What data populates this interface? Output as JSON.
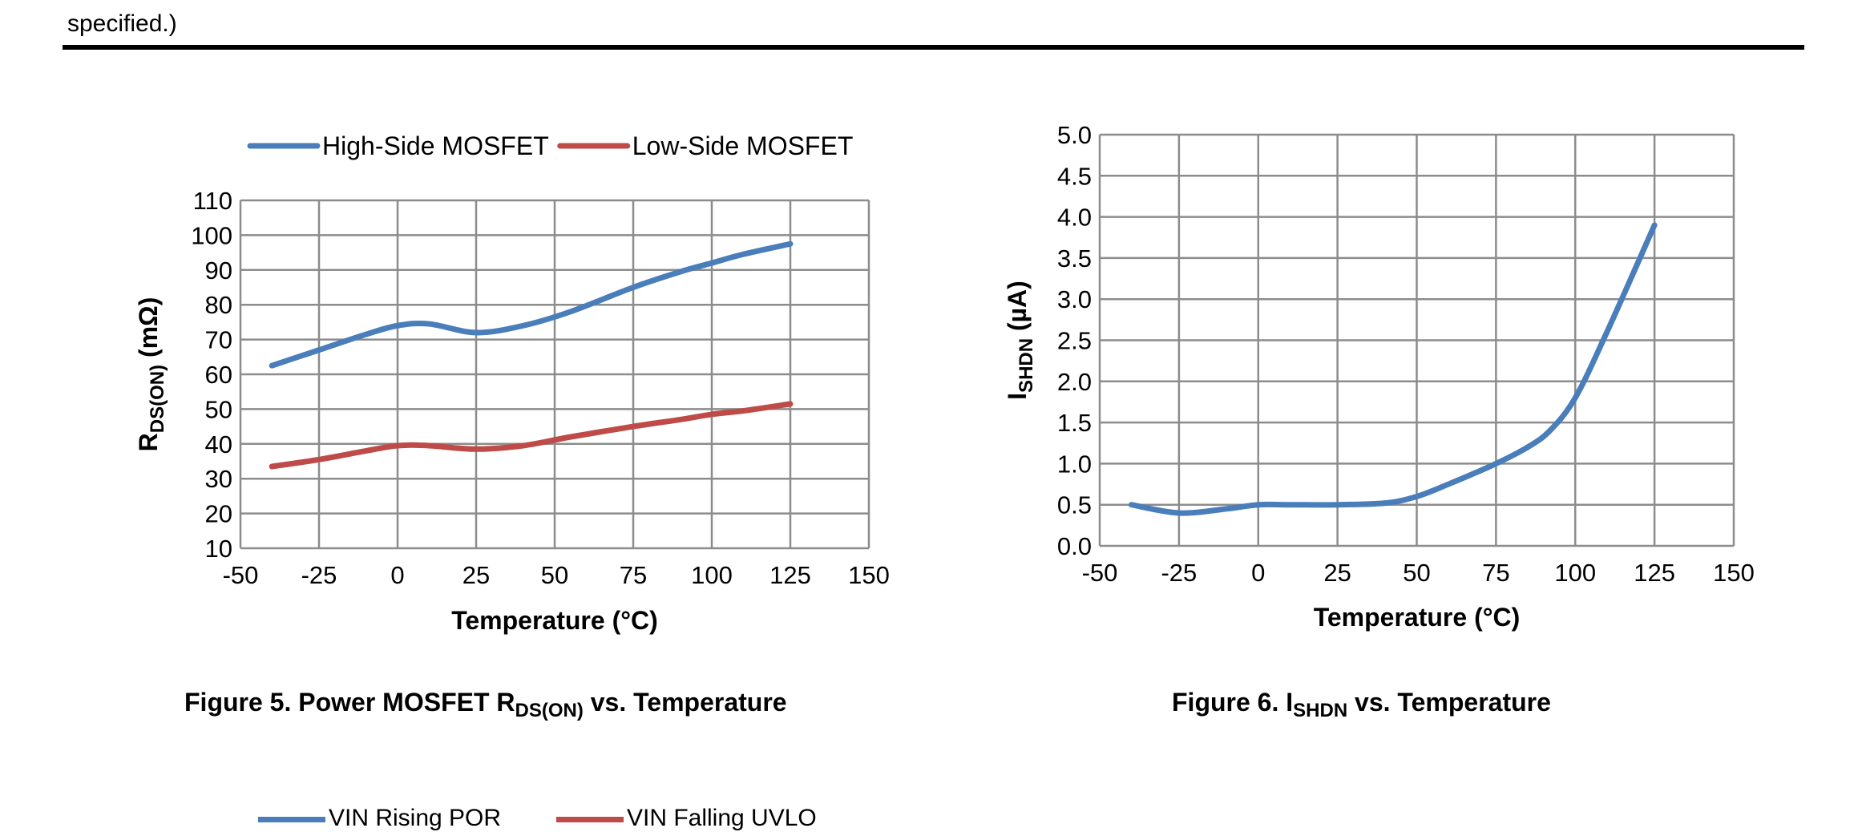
{
  "header": {
    "text": "specified.)"
  },
  "captions": {
    "fig5": {
      "prefix": "Figure 5. Power MOSFET R",
      "sub": "DS(ON)",
      "suffix": " vs. Temperature"
    },
    "fig6": {
      "prefix": "Figure 6. I",
      "sub": "SHDN",
      "suffix": " vs. Temperature"
    }
  },
  "bottom_legend": {
    "items": [
      {
        "label": "VIN Rising POR",
        "color": "#4a7ebb"
      },
      {
        "label": "VIN Falling UVLO",
        "color": "#be4b48"
      }
    ]
  },
  "chart_data": [
    {
      "type": "line",
      "xlabel": "Temperature (°C)",
      "ylabel_main": "R",
      "ylabel_sub": "DS(ON)",
      "ylabel_suffix": " (mΩ)",
      "xlim": [
        -50,
        150
      ],
      "ylim": [
        10,
        110
      ],
      "xticks": [
        -50,
        -25,
        0,
        25,
        50,
        75,
        100,
        125,
        150
      ],
      "yticks": [
        10,
        20,
        30,
        40,
        50,
        60,
        70,
        80,
        90,
        100,
        110
      ],
      "grid": true,
      "legend_position": "top",
      "series": [
        {
          "name": "High-Side MOSFET",
          "color": "#4a7ebb",
          "x": [
            -40,
            -25,
            -10,
            0,
            10,
            25,
            40,
            55,
            75,
            90,
            100,
            110,
            125
          ],
          "y": [
            62.5,
            67,
            71.5,
            74,
            74.5,
            72,
            74,
            78,
            85,
            89.5,
            92,
            94.5,
            97.5
          ]
        },
        {
          "name": "Low-Side MOSFET",
          "color": "#be4b48",
          "x": [
            -40,
            -25,
            -10,
            0,
            10,
            25,
            40,
            55,
            75,
            90,
            100,
            110,
            125
          ],
          "y": [
            33.5,
            35.5,
            38,
            39.5,
            39.5,
            38.5,
            39.5,
            42,
            45,
            47,
            48.5,
            49.5,
            51.5
          ]
        }
      ]
    },
    {
      "type": "line",
      "xlabel": "Temperature (°C)",
      "ylabel_main": "I",
      "ylabel_sub": "SHDN",
      "ylabel_suffix": " (µA)",
      "xlim": [
        -50,
        150
      ],
      "ylim": [
        0,
        5
      ],
      "xticks": [
        -50,
        -25,
        0,
        25,
        50,
        75,
        100,
        125,
        150
      ],
      "yticks": [
        0.0,
        0.5,
        1.0,
        1.5,
        2.0,
        2.5,
        3.0,
        3.5,
        4.0,
        4.5,
        5.0
      ],
      "yticks_decimals": 1,
      "grid": true,
      "series": [
        {
          "color": "#4a7ebb",
          "x": [
            -40,
            -25,
            -10,
            0,
            10,
            25,
            40,
            50,
            60,
            75,
            85,
            92,
            100,
            110,
            125
          ],
          "y": [
            0.5,
            0.4,
            0.45,
            0.5,
            0.5,
            0.5,
            0.52,
            0.6,
            0.75,
            1.0,
            1.2,
            1.4,
            1.8,
            2.6,
            3.9
          ]
        }
      ]
    }
  ]
}
